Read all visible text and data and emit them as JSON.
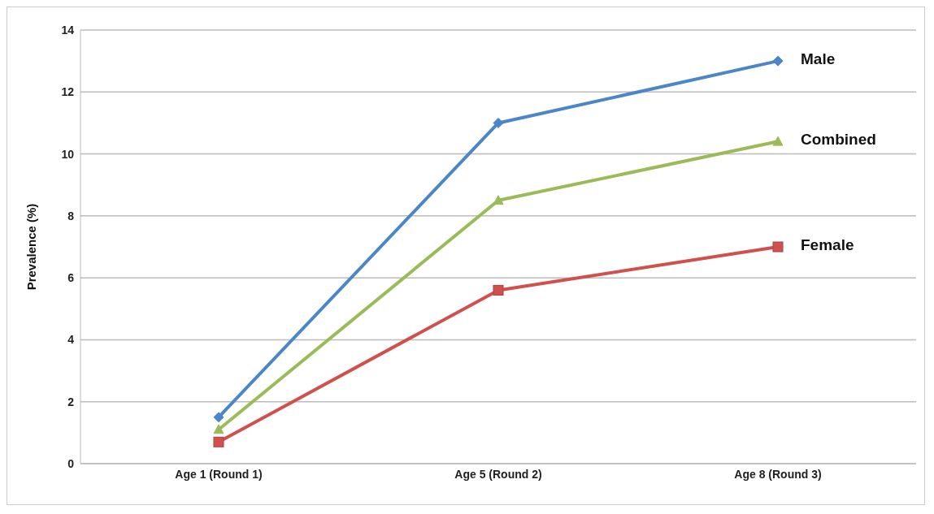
{
  "chart_data": {
    "type": "line",
    "ylabel": "Prevalence (%)",
    "categories": [
      "Age 1 (Round 1)",
      "Age 5 (Round 2)",
      "Age 8 (Round 3)"
    ],
    "series": [
      {
        "name": "Male",
        "color": "#4a86c8",
        "values": [
          1.5,
          11,
          13
        ],
        "marker": "diamond"
      },
      {
        "name": "Combined",
        "color": "#9bbb59",
        "values": [
          1.1,
          8.5,
          10.4
        ],
        "marker": "triangle"
      },
      {
        "name": "Female",
        "color": "#d0504d",
        "values": [
          0.7,
          5.6,
          7
        ],
        "marker": "square"
      }
    ],
    "ylim": [
      0,
      14
    ],
    "yticks": [
      0,
      2,
      4,
      6,
      8,
      10,
      12,
      14
    ],
    "grid": "y",
    "legend": false,
    "line_style": "solid"
  }
}
